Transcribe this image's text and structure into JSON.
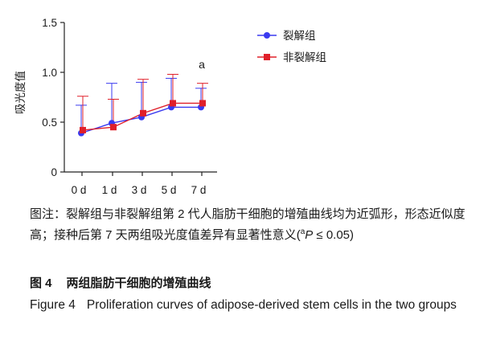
{
  "chart_data": {
    "type": "line",
    "title": "",
    "xlabel": "",
    "ylabel": "吸光度值",
    "categories": [
      "0 d",
      "1 d",
      "3 d",
      "5 d",
      "7 d"
    ],
    "yticks": [
      "0",
      "0.5",
      "1.0",
      "1.5"
    ],
    "ylim": [
      0,
      1.5
    ],
    "grid": false,
    "legend_position": "top-right",
    "series": [
      {
        "name": "裂解组",
        "color": "#3a3af0",
        "marker": "circle",
        "values": [
          0.39,
          0.49,
          0.55,
          0.65,
          0.65
        ],
        "error_upper": [
          0.67,
          0.89,
          0.9,
          0.94,
          0.84
        ]
      },
      {
        "name": "非裂解组",
        "color": "#e0202a",
        "marker": "square",
        "values": [
          0.42,
          0.45,
          0.59,
          0.69,
          0.69
        ],
        "error_upper": [
          0.76,
          0.73,
          0.93,
          0.98,
          0.89
        ]
      }
    ],
    "annotations": [
      {
        "text": "a",
        "category": "7 d",
        "y": 1.04
      }
    ]
  },
  "caption": {
    "note_main": "图注：裂解组与非裂解组第 2 代人脂肪干细胞的增殖曲线均为近弧形，形态近似度高；接种后第 7 天两组吸光度值差异有显著性意义",
    "note_open": "(",
    "note_sup": "a",
    "note_p": "P",
    "note_cmp": " ≤ 0.05)",
    "figure_cn_number": "图 4",
    "figure_cn_title": "两组脂肪干细胞的增殖曲线",
    "figure_en_number": "Figure 4",
    "figure_en_title": "Proliferation curves of adipose-derived stem cells in the two groups"
  }
}
